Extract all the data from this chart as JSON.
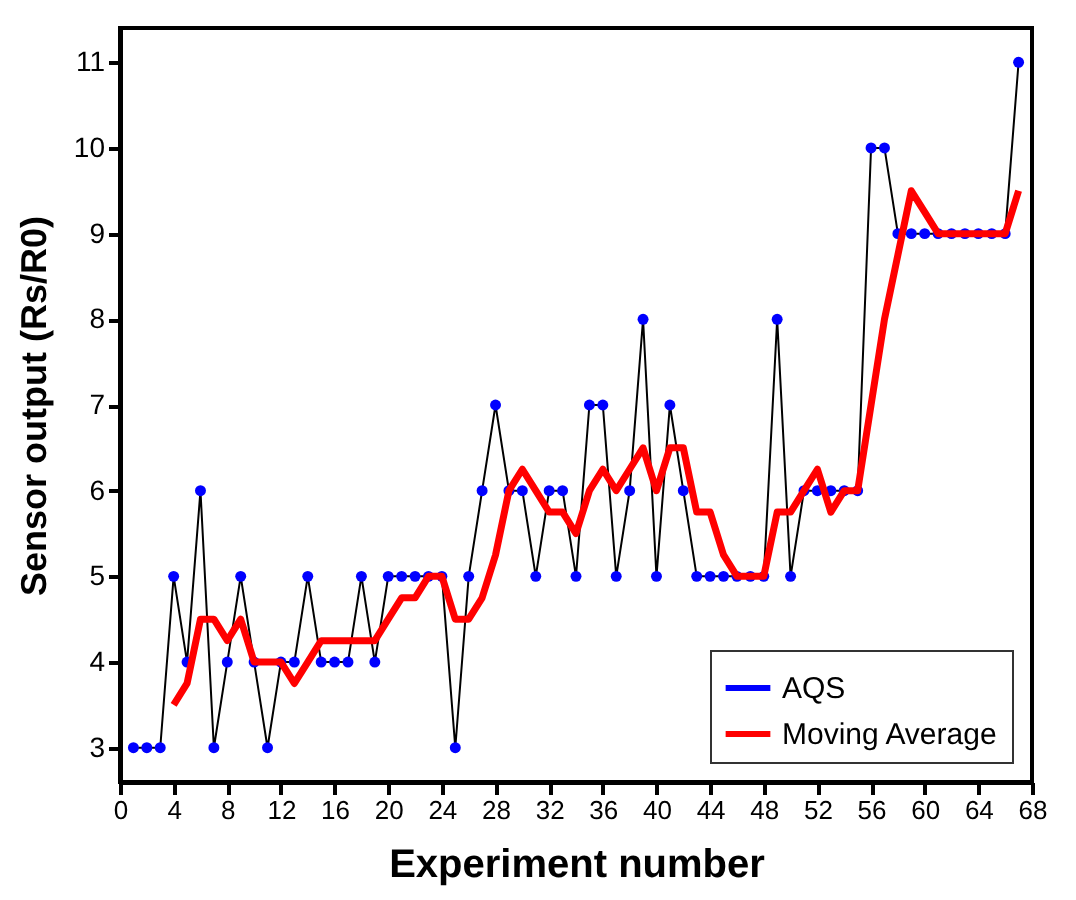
{
  "chart_data": {
    "type": "line",
    "xlabel": "Experiment number",
    "ylabel": "Sensor output (Rs/R0)",
    "x": [
      1,
      2,
      3,
      4,
      5,
      6,
      7,
      8,
      9,
      10,
      11,
      12,
      13,
      14,
      15,
      16,
      17,
      18,
      19,
      20,
      21,
      22,
      23,
      24,
      25,
      26,
      27,
      28,
      29,
      30,
      31,
      32,
      33,
      34,
      35,
      36,
      37,
      38,
      39,
      40,
      41,
      42,
      43,
      44,
      45,
      46,
      47,
      48,
      49,
      50,
      51,
      52,
      53,
      54,
      55,
      56,
      57,
      58,
      59,
      60,
      61,
      62,
      63,
      64,
      65,
      66,
      67
    ],
    "series": [
      {
        "name": "AQS",
        "color": "#0000ff",
        "marker": "circle",
        "values": [
          3,
          3,
          3,
          5,
          4,
          6,
          3,
          4,
          5,
          4,
          3,
          4,
          4,
          5,
          4,
          4,
          4,
          5,
          4,
          5,
          5,
          5,
          5,
          5,
          3,
          5,
          6,
          7,
          6,
          6,
          5,
          6,
          6,
          5,
          7,
          7,
          5,
          6,
          8,
          5,
          7,
          6,
          5,
          5,
          5,
          5,
          5,
          5,
          8,
          5,
          6,
          6,
          6,
          6,
          6,
          10,
          10,
          9,
          9,
          9,
          9,
          9,
          9,
          9,
          9,
          9,
          11
        ]
      },
      {
        "name": "Moving Average",
        "color": "#ff0000",
        "marker": "none",
        "values": [
          null,
          null,
          null,
          3.5,
          3.75,
          4.5,
          4.5,
          4.25,
          4.5,
          4,
          4,
          4,
          3.75,
          4,
          4.25,
          4.25,
          4.25,
          4.25,
          4.25,
          4.5,
          4.75,
          4.75,
          5,
          5,
          4.5,
          4.5,
          4.75,
          5.25,
          6,
          6.25,
          6,
          5.75,
          5.75,
          5.5,
          6,
          6.25,
          6,
          6.25,
          6.5,
          6,
          6.5,
          6.5,
          5.75,
          5.75,
          5.25,
          5,
          5,
          5,
          5.75,
          5.75,
          6,
          6.25,
          5.75,
          6,
          6,
          7,
          8,
          8.75,
          9.5,
          9.25,
          9,
          9,
          9,
          9,
          9,
          9,
          9.5
        ]
      }
    ],
    "xlim": [
      0,
      68
    ],
    "xticks": [
      0,
      4,
      8,
      12,
      16,
      20,
      24,
      28,
      32,
      36,
      40,
      44,
      48,
      52,
      56,
      60,
      64,
      68
    ],
    "ylim": [
      2.6,
      11.4
    ],
    "yticks": [
      3,
      4,
      5,
      6,
      7,
      8,
      9,
      10,
      11
    ],
    "grid": false,
    "legend": "bottom right"
  }
}
